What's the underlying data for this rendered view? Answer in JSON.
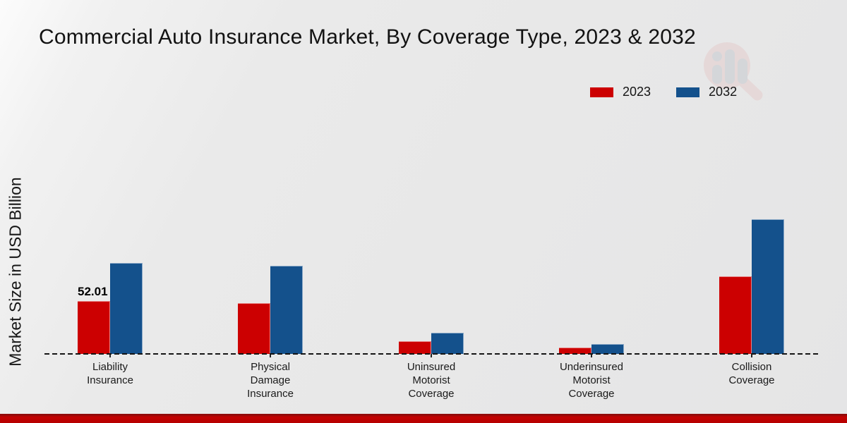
{
  "header": {
    "title": "Commercial Auto Insurance Market, By Coverage Type, 2023 & 2032"
  },
  "y_axis": {
    "label": "Market Size in USD Billion"
  },
  "legend": {
    "items": [
      {
        "label": "2023",
        "color": "#cc0001"
      },
      {
        "label": "2032",
        "color": "#14518c"
      }
    ]
  },
  "chart_data": {
    "type": "bar",
    "title": "Commercial Auto Insurance Market, By Coverage Type, 2023 & 2032",
    "ylabel": "Market Size in USD Billion",
    "xlabel": "",
    "categories": [
      "Liability Insurance",
      "Physical Damage Insurance",
      "Uninsured Motorist Coverage",
      "Underinsured Motorist Coverage",
      "Collision Coverage"
    ],
    "series": [
      {
        "name": "2023",
        "color": "#cc0001",
        "values": [
          52.01,
          49.9,
          12.3,
          6.0,
          76.5
        ]
      },
      {
        "name": "2032",
        "color": "#14518c",
        "values": [
          89.5,
          86.5,
          21.0,
          9.9,
          132.5
        ]
      }
    ],
    "data_labels": [
      {
        "series": "2023",
        "category_index": 0,
        "text": "52.01"
      }
    ],
    "axis": {
      "baseline_style": "dashed",
      "gridlines": false,
      "y_tick_labels_visible": false,
      "ylim": [
        0,
        140
      ]
    },
    "legend_position": "top-right"
  },
  "watermark": {
    "icon": "magnifier-bar-chart-logo"
  },
  "footer": {
    "accent_color": "#b50000"
  }
}
